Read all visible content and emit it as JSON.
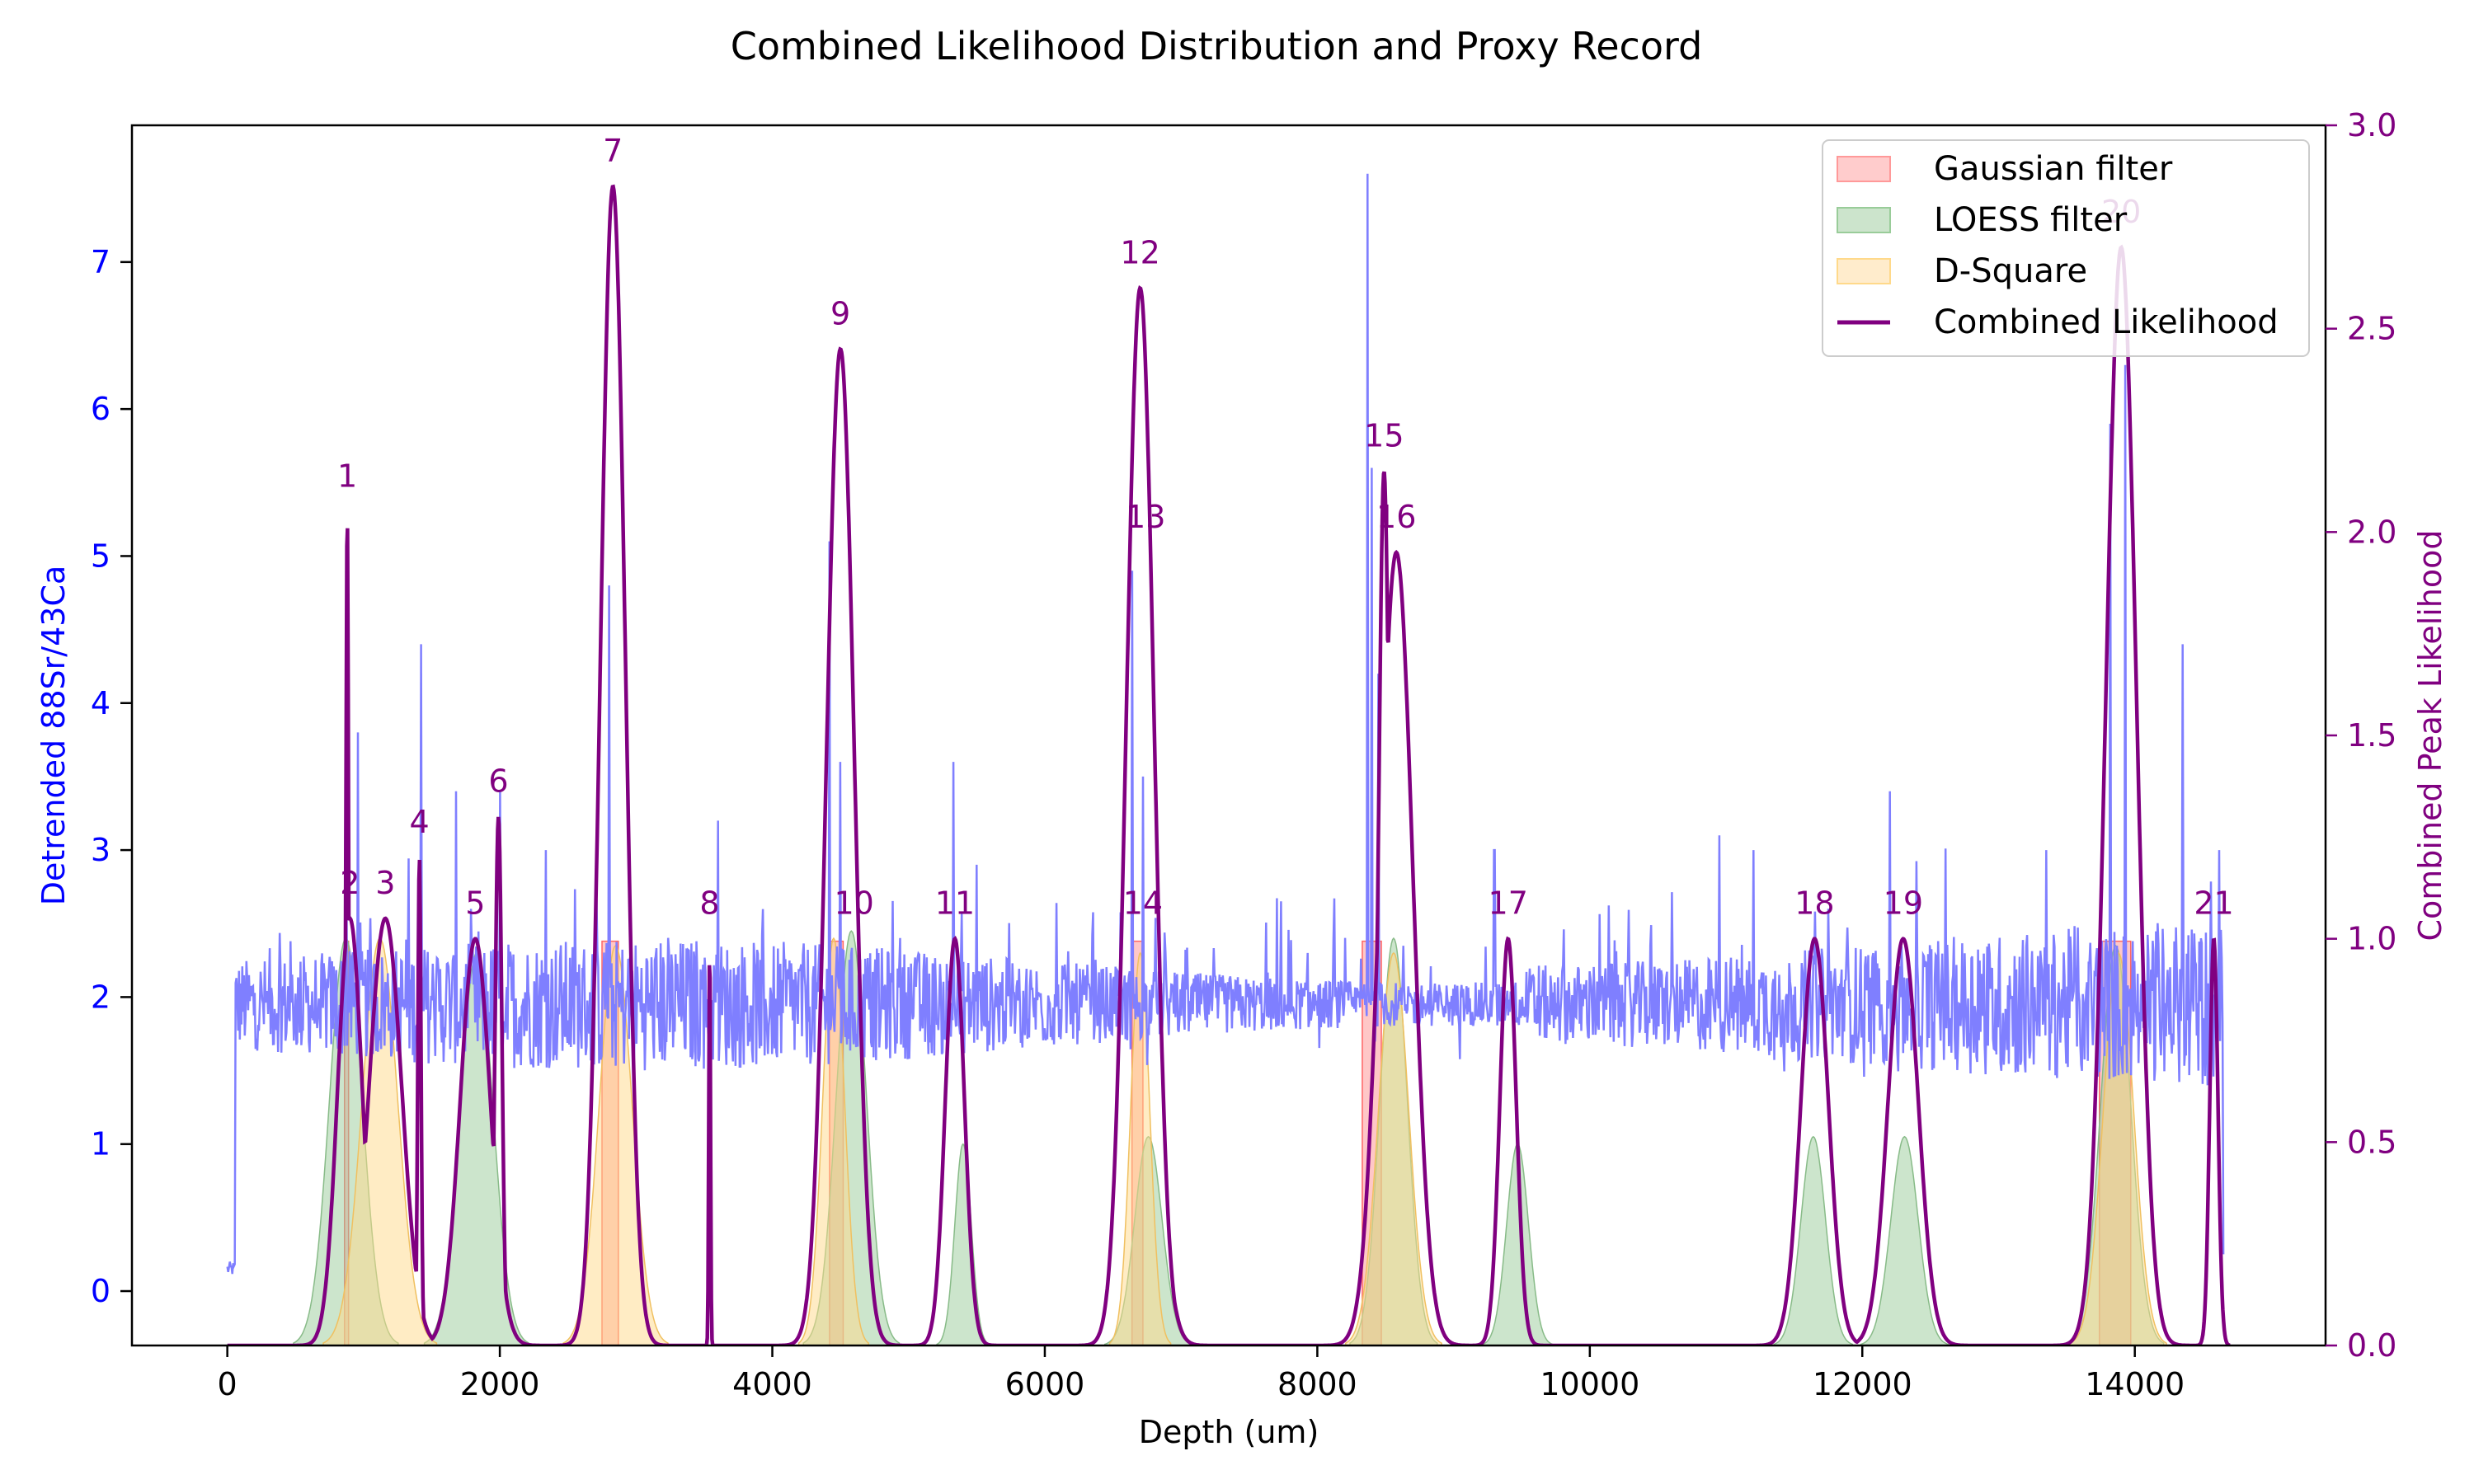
{
  "chart_data": {
    "type": "line",
    "title": "Combined Likelihood Distribution and Proxy Record",
    "xlabel": "Depth (um)",
    "ylabel_left": "Detrended 88Sr/43Ca",
    "ylabel_right": "Combined Peak Likelihood",
    "xlim": [
      -700,
      15400
    ],
    "ylim_left": [
      -0.37,
      7.93
    ],
    "ylim_right": [
      0.0,
      3.0
    ],
    "x_ticks": [
      0,
      2000,
      4000,
      6000,
      8000,
      10000,
      12000,
      14000
    ],
    "y_left_ticks": [
      0,
      1,
      2,
      3,
      4,
      5,
      6,
      7
    ],
    "y_right_ticks": [
      "0.0",
      "0.5",
      "1.0",
      "1.5",
      "2.0",
      "2.5",
      "3.0"
    ],
    "grid": false,
    "legend_position": "top-right",
    "colors": {
      "proxy": "#7f7fff",
      "combined": "#800080",
      "gaussian": "#ff9999",
      "loess": "#99cc99",
      "dsquare": "#ffd98a",
      "left_axis": "#0000ff",
      "right_axis": "#800080"
    },
    "legend": [
      {
        "label": "Gaussian filter",
        "kind": "gaussian"
      },
      {
        "label": "LOESS filter",
        "kind": "loess"
      },
      {
        "label": "D-Square",
        "kind": "dsquare"
      },
      {
        "label": "Combined Likelihood",
        "kind": "combined"
      }
    ],
    "proxy_record": {
      "name": "Detrended 88Sr/43Ca",
      "x_range": [
        0,
        14650
      ],
      "baseline": 1.95,
      "noise": 0.3,
      "spikes": [
        [
          870,
          3.5
        ],
        [
          960,
          3.8
        ],
        [
          1420,
          4.4
        ],
        [
          1680,
          3.4
        ],
        [
          2000,
          3.4
        ],
        [
          2340,
          3.0
        ],
        [
          2800,
          4.8
        ],
        [
          3600,
          3.2
        ],
        [
          4420,
          5.1
        ],
        [
          4500,
          3.6
        ],
        [
          5330,
          3.6
        ],
        [
          5500,
          2.9
        ],
        [
          6640,
          4.9
        ],
        [
          6720,
          3.5
        ],
        [
          8370,
          7.6
        ],
        [
          8400,
          5.6
        ],
        [
          8450,
          4.2
        ],
        [
          9300,
          3.0
        ],
        [
          10950,
          3.1
        ],
        [
          11200,
          3.0
        ],
        [
          12200,
          3.4
        ],
        [
          13350,
          3.0
        ],
        [
          13820,
          5.9
        ],
        [
          13930,
          6.3
        ],
        [
          14350,
          4.4
        ],
        [
          14620,
          3.0
        ]
      ]
    },
    "combined_likelihood": {
      "peaks": [
        {
          "label": "1",
          "x": 880,
          "y": 2.05,
          "width": 10
        },
        {
          "label": "2",
          "x": 900,
          "y": 1.05,
          "width": 90
        },
        {
          "label": "3",
          "x": 1160,
          "y": 1.05,
          "width": 120
        },
        {
          "label": "4",
          "x": 1410,
          "y": 1.2,
          "width": 12
        },
        {
          "label": "5",
          "x": 1820,
          "y": 1.0,
          "width": 110
        },
        {
          "label": "6",
          "x": 1990,
          "y": 1.3,
          "width": 25
        },
        {
          "label": "7",
          "x": 2830,
          "y": 2.85,
          "width": 90
        },
        {
          "label": "8",
          "x": 3540,
          "y": 1.0,
          "width": 6
        },
        {
          "label": "9",
          "x": 4500,
          "y": 2.45,
          "width": 100
        },
        {
          "label": "10",
          "x": 4600,
          "y": 1.0,
          "width": 60
        },
        {
          "label": "11",
          "x": 5340,
          "y": 1.0,
          "width": 70
        },
        {
          "label": "12",
          "x": 6700,
          "y": 2.6,
          "width": 100
        },
        {
          "label": "13",
          "x": 6740,
          "y": 1.95,
          "width": 15
        },
        {
          "label": "14",
          "x": 6720,
          "y": 1.0,
          "width": 110
        },
        {
          "label": "15",
          "x": 8490,
          "y": 2.15,
          "width": 40
        },
        {
          "label": "16",
          "x": 8580,
          "y": 1.95,
          "width": 120
        },
        {
          "label": "17",
          "x": 9400,
          "y": 1.0,
          "width": 60
        },
        {
          "label": "18",
          "x": 11650,
          "y": 1.0,
          "width": 100
        },
        {
          "label": "19",
          "x": 12300,
          "y": 1.0,
          "width": 110
        },
        {
          "label": "20",
          "x": 13900,
          "y": 2.7,
          "width": 110
        },
        {
          "label": "21",
          "x": 14580,
          "y": 1.0,
          "width": 30
        }
      ]
    },
    "gaussian_filter": {
      "intervals": [
        [
          860,
          890
        ],
        [
          2750,
          2870
        ],
        [
          4420,
          4520
        ],
        [
          6640,
          6720
        ],
        [
          8330,
          8470
        ],
        [
          13740,
          13970
        ]
      ]
    },
    "loess_filter": {
      "bumps": [
        {
          "x": 870,
          "y": 2.4,
          "width": 120
        },
        {
          "x": 1830,
          "y": 2.3,
          "width": 120
        },
        {
          "x": 4580,
          "y": 2.45,
          "width": 110
        },
        {
          "x": 5400,
          "y": 1.0,
          "width": 60
        },
        {
          "x": 6760,
          "y": 1.05,
          "width": 100
        },
        {
          "x": 8560,
          "y": 2.4,
          "width": 100
        },
        {
          "x": 9470,
          "y": 1.0,
          "width": 80
        },
        {
          "x": 11640,
          "y": 1.05,
          "width": 90
        },
        {
          "x": 12310,
          "y": 1.05,
          "width": 100
        },
        {
          "x": 13860,
          "y": 2.35,
          "width": 110
        }
      ]
    },
    "dsquare": {
      "bumps": [
        {
          "x": 1120,
          "y": 2.4,
          "width": 130
        },
        {
          "x": 2850,
          "y": 2.35,
          "width": 120
        },
        {
          "x": 4450,
          "y": 2.4,
          "width": 80
        },
        {
          "x": 6700,
          "y": 2.3,
          "width": 70
        },
        {
          "x": 8560,
          "y": 2.3,
          "width": 110
        },
        {
          "x": 13880,
          "y": 2.3,
          "width": 110
        }
      ]
    }
  }
}
